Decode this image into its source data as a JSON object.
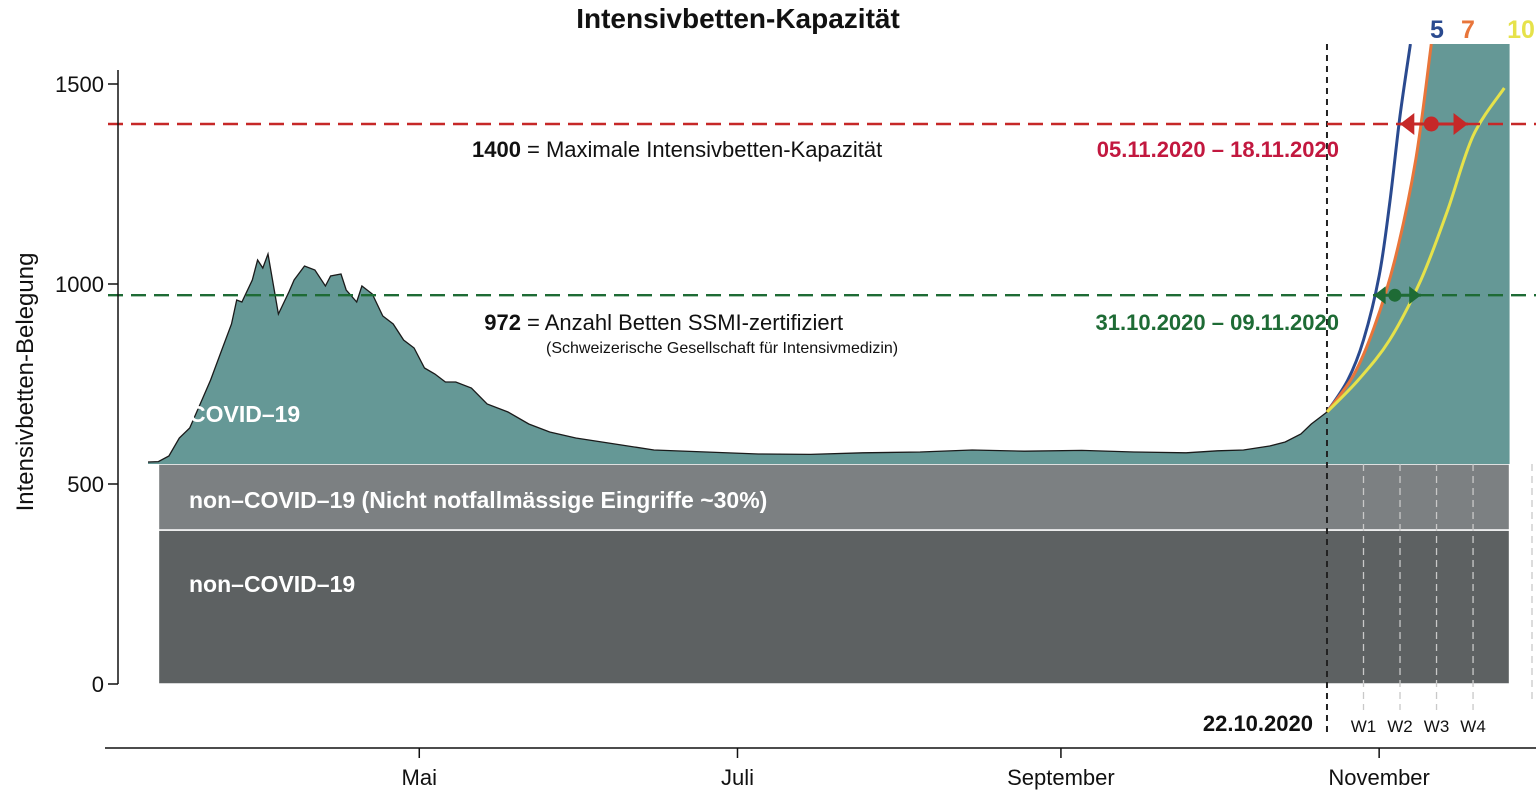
{
  "chart_data": {
    "type": "area",
    "title": "Intensivbetten-Kapazität",
    "ylabel": "Intensivbetten-Belegung",
    "xlabel": "",
    "ylim": [
      0,
      1600
    ],
    "xlim": [
      "2020-03-10",
      "2020-11-28"
    ],
    "y_ticks": [
      0,
      500,
      1000,
      1500
    ],
    "x_ticks": [
      {
        "date": "2020-05-01",
        "label": "Mai"
      },
      {
        "date": "2020-07-01",
        "label": "Juli"
      },
      {
        "date": "2020-09-01",
        "label": "September"
      },
      {
        "date": "2020-11-01",
        "label": "November"
      }
    ],
    "grid": false,
    "stacked_bands": [
      {
        "name": "non–COVID–19",
        "from": 0,
        "to": 385,
        "color": "#5d6162",
        "x_start": "2020-03-12",
        "x_end": "2020-11-26"
      },
      {
        "name": "non–COVID–19 (Nicht notfallmässige Eingriffe ~30%)",
        "from": 385,
        "to": 550,
        "color": "#7c8082",
        "x_start": "2020-03-12",
        "x_end": "2020-11-26"
      }
    ],
    "series": [
      {
        "name": "COVID–19",
        "color": "#659896",
        "points": [
          [
            "2020-03-10",
            555
          ],
          [
            "2020-03-12",
            556
          ],
          [
            "2020-03-14",
            570
          ],
          [
            "2020-03-16",
            615
          ],
          [
            "2020-03-18",
            640
          ],
          [
            "2020-03-20",
            700
          ],
          [
            "2020-03-22",
            760
          ],
          [
            "2020-03-24",
            830
          ],
          [
            "2020-03-26",
            900
          ],
          [
            "2020-03-27",
            960
          ],
          [
            "2020-03-28",
            955
          ],
          [
            "2020-03-30",
            1010
          ],
          [
            "2020-03-31",
            1060
          ],
          [
            "2020-04-01",
            1040
          ],
          [
            "2020-04-02",
            1075
          ],
          [
            "2020-04-03",
            1000
          ],
          [
            "2020-04-04",
            925
          ],
          [
            "2020-04-06",
            980
          ],
          [
            "2020-04-07",
            1010
          ],
          [
            "2020-04-09",
            1045
          ],
          [
            "2020-04-11",
            1035
          ],
          [
            "2020-04-13",
            995
          ],
          [
            "2020-04-14",
            1020
          ],
          [
            "2020-04-16",
            1025
          ],
          [
            "2020-04-17",
            985
          ],
          [
            "2020-04-19",
            955
          ],
          [
            "2020-04-20",
            995
          ],
          [
            "2020-04-22",
            975
          ],
          [
            "2020-04-24",
            920
          ],
          [
            "2020-04-26",
            900
          ],
          [
            "2020-04-28",
            860
          ],
          [
            "2020-04-30",
            840
          ],
          [
            "2020-05-02",
            790
          ],
          [
            "2020-05-04",
            775
          ],
          [
            "2020-05-06",
            755
          ],
          [
            "2020-05-08",
            755
          ],
          [
            "2020-05-11",
            740
          ],
          [
            "2020-05-14",
            700
          ],
          [
            "2020-05-18",
            680
          ],
          [
            "2020-05-22",
            650
          ],
          [
            "2020-05-26",
            630
          ],
          [
            "2020-05-31",
            615
          ],
          [
            "2020-06-05",
            605
          ],
          [
            "2020-06-10",
            595
          ],
          [
            "2020-06-15",
            585
          ],
          [
            "2020-06-25",
            580
          ],
          [
            "2020-07-05",
            575
          ],
          [
            "2020-07-15",
            574
          ],
          [
            "2020-07-25",
            578
          ],
          [
            "2020-08-05",
            580
          ],
          [
            "2020-08-15",
            585
          ],
          [
            "2020-08-25",
            582
          ],
          [
            "2020-09-05",
            584
          ],
          [
            "2020-09-15",
            580
          ],
          [
            "2020-09-25",
            578
          ],
          [
            "2020-10-01",
            583
          ],
          [
            "2020-10-06",
            585
          ],
          [
            "2020-10-11",
            595
          ],
          [
            "2020-10-14",
            605
          ],
          [
            "2020-10-17",
            625
          ],
          [
            "2020-10-19",
            650
          ],
          [
            "2020-10-21",
            670
          ],
          [
            "2020-10-22",
            680
          ]
        ]
      }
    ],
    "projections": [
      {
        "name": "5",
        "color": "#2a4a8f",
        "points": [
          [
            "2020-10-22",
            680
          ],
          [
            "2020-10-26",
            760
          ],
          [
            "2020-10-29",
            860
          ],
          [
            "2020-11-01",
            1020
          ],
          [
            "2020-11-03",
            1200
          ],
          [
            "2020-11-05",
            1420
          ],
          [
            "2020-11-07",
            1600
          ]
        ]
      },
      {
        "name": "7",
        "color": "#e8753a",
        "points": [
          [
            "2020-10-22",
            680
          ],
          [
            "2020-10-27",
            770
          ],
          [
            "2020-10-31",
            890
          ],
          [
            "2020-11-04",
            1060
          ],
          [
            "2020-11-08",
            1310
          ],
          [
            "2020-11-11",
            1600
          ]
        ]
      },
      {
        "name": "10",
        "color": "#e6e24a",
        "points": [
          [
            "2020-10-22",
            680
          ],
          [
            "2020-10-28",
            760
          ],
          [
            "2020-11-03",
            860
          ],
          [
            "2020-11-09",
            1010
          ],
          [
            "2020-11-14",
            1180
          ],
          [
            "2020-11-19",
            1370
          ],
          [
            "2020-11-25",
            1490
          ]
        ]
      }
    ],
    "projection_area": {
      "color": "#659896",
      "points": [
        [
          "2020-10-22",
          680
        ],
        [
          "2020-10-27",
          770
        ],
        [
          "2020-10-31",
          890
        ],
        [
          "2020-11-04",
          1060
        ],
        [
          "2020-11-08",
          1310
        ],
        [
          "2020-11-11",
          1600
        ],
        [
          "2020-11-26",
          1600
        ]
      ]
    },
    "reference_lines": [
      {
        "value": 1400,
        "color": "#c62828",
        "value_label": "1400",
        "label": "=  Maximale Intensivbetten-Kapazität",
        "range": "05.11.2020 – 18.11.2020",
        "range_color": "#c2183f",
        "range_start": "2020-11-05",
        "range_end": "2020-11-18",
        "range_mid": "2020-11-11"
      },
      {
        "value": 972,
        "color": "#1e6b35",
        "value_label": "972",
        "label": "=  Anzahl Betten SSMI-zertifiziert",
        "sub_label": "(Schweizerische Gesellschaft für Intensivmedizin)",
        "range": "31.10.2020 – 09.11.2020",
        "range_color": "#1e6b35",
        "range_start": "2020-10-31",
        "range_end": "2020-11-09",
        "range_mid": "2020-11-04"
      }
    ],
    "today_marker": {
      "date": "2020-10-22",
      "label": "22.10.2020"
    },
    "weeks": [
      {
        "date": "2020-10-29",
        "label": "W1"
      },
      {
        "date": "2020-11-05",
        "label": "W2"
      },
      {
        "date": "2020-11-12",
        "label": "W3"
      },
      {
        "date": "2020-11-19",
        "label": "W4"
      }
    ]
  }
}
